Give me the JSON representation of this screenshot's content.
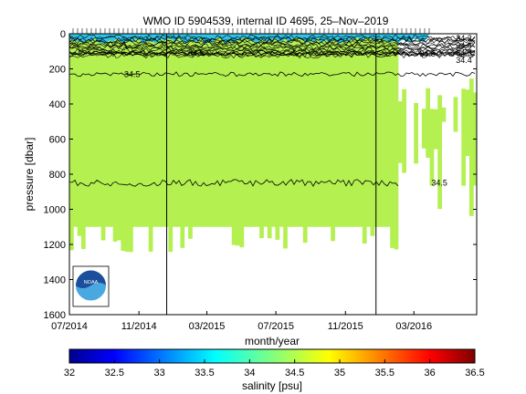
{
  "chart_data": {
    "type": "heatmap",
    "title": "WMO ID 5904539, internal ID 4695, 25–Nov–2019",
    "xlabel": "month/year",
    "ylabel": "pressure [dbar]",
    "x_ticks": [
      "07/2014",
      "11/2014",
      "03/2015",
      "07/2015",
      "11/2015",
      "03/2016"
    ],
    "x_range": [
      "2014-07-01",
      "2016-06-20"
    ],
    "y_ticks": [
      0,
      200,
      400,
      600,
      800,
      1000,
      1200,
      1400,
      1600
    ],
    "ylim": [
      1600,
      0
    ],
    "colorbar": {
      "label": "salinity [psu]",
      "ticks": [
        32,
        32.5,
        33,
        33.5,
        34,
        34.5,
        35,
        35.5,
        36,
        36.5
      ],
      "range": [
        32,
        36.5
      ]
    },
    "field": {
      "dominant_value": 34.5,
      "dominant_color": "#b3f050",
      "surface_color": "#2ec4e8",
      "surface_value": 33.9,
      "gap_color": "#ffffff",
      "profile_bottom_dbar": 1100,
      "dropouts_after": "2016-02-01"
    },
    "contours": [
      {
        "label": "34.5",
        "pressure_dbar": 230,
        "label_date": "2014-10-20"
      },
      {
        "label": "34.5",
        "pressure_dbar": 110,
        "label_date": "2015-02-10"
      },
      {
        "label": "34.5",
        "pressure_dbar": 115,
        "label_date": "2016-03-25"
      },
      {
        "label": "34.5",
        "pressure_dbar": 850,
        "label_date": "2016-04-15"
      }
    ],
    "right_edge_labels": [
      "34.2",
      "34.4",
      "34.3",
      "34.4"
    ],
    "vertical_markers": [
      "2014-12-20",
      "2015-12-25"
    ],
    "logo": "NOAA"
  }
}
